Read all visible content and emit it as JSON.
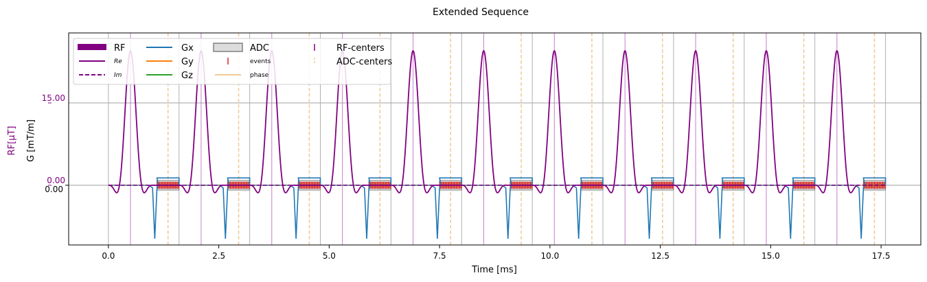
{
  "chart_data": {
    "type": "line",
    "title": "Extended Sequence",
    "xlabel": "Time [ms]",
    "ylabel_left_rf": "RF[$\\mu$T]",
    "ylabel_left_g": "G [mT/m]",
    "xlim": [
      -0.9,
      18.4
    ],
    "x_ticks": [
      0.0,
      2.5,
      5.0,
      7.5,
      10.0,
      12.5,
      15.0,
      17.5
    ],
    "x_tick_labels": [
      "0.0",
      "2.5",
      "5.0",
      "7.5",
      "10.0",
      "12.5",
      "15.0",
      "17.5"
    ],
    "rf_axis": {
      "ticks": [
        0.0,
        15.0
      ],
      "tick_labels": [
        "0.00",
        "15.00"
      ],
      "range": [
        -11,
        27
      ]
    },
    "g_axis": {
      "ticks": [
        0.0
      ],
      "tick_labels": [
        "0.00"
      ]
    },
    "block_period_ms": 1.6,
    "num_blocks": 11,
    "rf_centers_ms": [
      0.5,
      2.1,
      3.7,
      5.3,
      6.9,
      8.5,
      10.1,
      11.7,
      13.3,
      14.9,
      16.5
    ],
    "adc_centers_ms": [
      1.35,
      2.95,
      4.55,
      6.15,
      7.75,
      9.35,
      10.95,
      12.55,
      14.15,
      15.75,
      17.35
    ],
    "rf_peak_uT": 24.5,
    "adc_window_ms": {
      "start_offset": 1.1,
      "end_offset": 1.6
    },
    "gx_readout_level": 1.5,
    "gx_spoiler_min": -11.0,
    "gx_spoiler_center_offset": 1.05,
    "series_names": [
      "RF",
      "Re",
      "Im",
      "Gx",
      "Gy",
      "Gz",
      "ADC",
      "events",
      "phase",
      "RF-centers",
      "ADC-centers"
    ],
    "colors": {
      "rf": "#800080",
      "gx": "#1f77b4",
      "gy": "#ff7f0e",
      "gz": "#2ca02c",
      "adc_fill": "#c0c0c0",
      "adc_edge": "#808080",
      "events": "#d62728",
      "phase": "#f0c896",
      "rf_center_line": "#c77dcc",
      "adc_center_line": "#f0c896",
      "block_boundary": "#b0b0b0",
      "zero_line": "#a0a0a0"
    },
    "legend": {
      "placement": "upper-left",
      "entries": [
        {
          "label": "RF",
          "kind": "thick",
          "color_key": "rf",
          "col": 0
        },
        {
          "label": "Re",
          "kind": "line",
          "color_key": "rf",
          "col": 0,
          "small": true
        },
        {
          "label": "Im",
          "kind": "dashed",
          "color_key": "rf",
          "col": 0,
          "small": true
        },
        {
          "label": "Gx",
          "kind": "line",
          "color_key": "gx",
          "col": 1
        },
        {
          "label": "Gy",
          "kind": "line",
          "color_key": "gy",
          "col": 1
        },
        {
          "label": "Gz",
          "kind": "line",
          "color_key": "gz",
          "col": 1
        },
        {
          "label": "ADC",
          "kind": "box",
          "color_key": "adc_fill",
          "col": 2
        },
        {
          "label": "events",
          "kind": "tick",
          "color_key": "events",
          "col": 2,
          "small": true
        },
        {
          "label": "phase",
          "kind": "line",
          "color_key": "phase",
          "col": 2,
          "small": true
        },
        {
          "label": "RF-centers",
          "kind": "tick",
          "color_key": "rf",
          "col": 3
        },
        {
          "label": "ADC-centers",
          "kind": "dashtick",
          "color_key": "adc_center_line",
          "col": 3
        }
      ]
    }
  }
}
